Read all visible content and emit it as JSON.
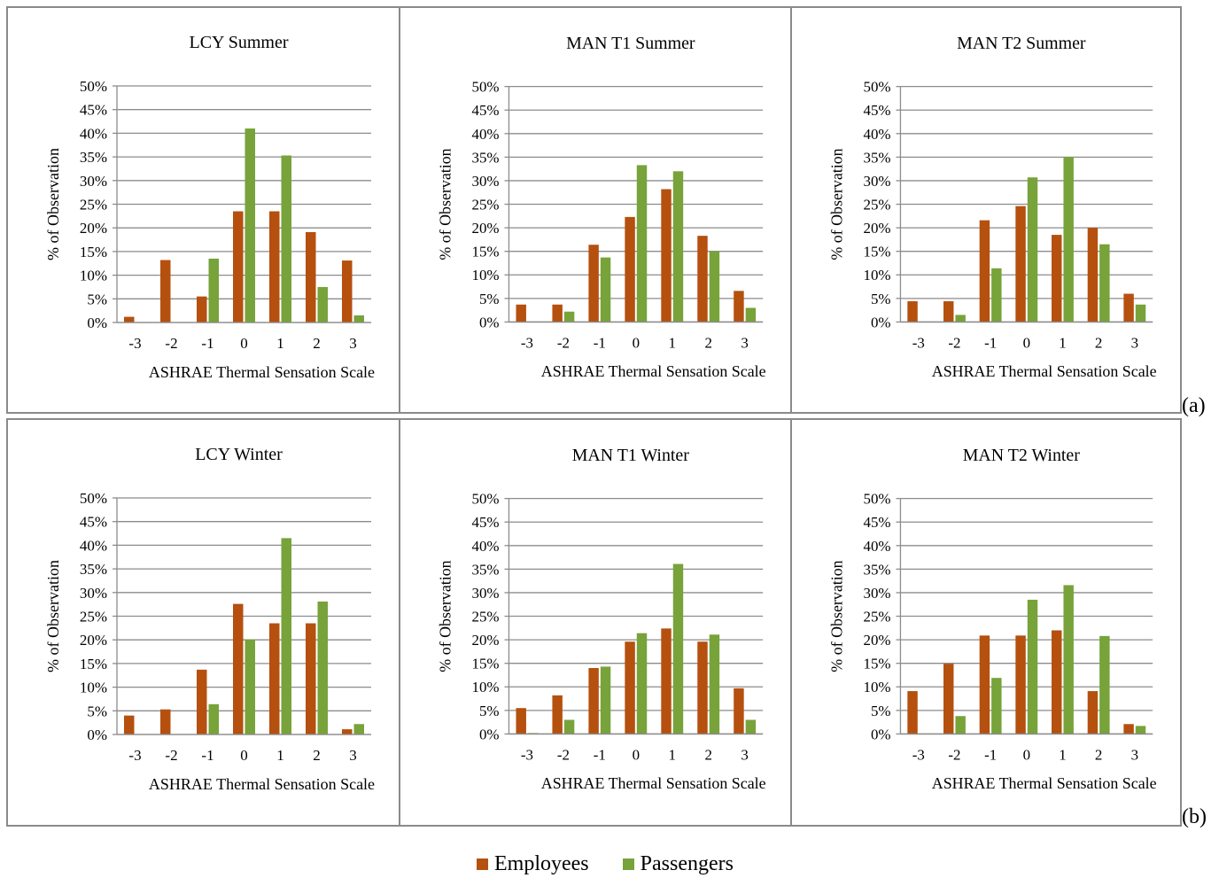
{
  "panels": [
    {
      "label": "(a)"
    },
    {
      "label": "(b)"
    }
  ],
  "legend": [
    {
      "name": "Employees",
      "color": "#b5500f"
    },
    {
      "name": "Passengers",
      "color": "#77a33a"
    }
  ],
  "chart_data": [
    {
      "type": "bar",
      "title": "LCY Summer",
      "xlabel": "ASHRAE Thermal Sensation Scale",
      "ylabel": "% of Observation",
      "categories": [
        "-3",
        "-2",
        "-1",
        "0",
        "1",
        "2",
        "3"
      ],
      "ylim": [
        0,
        50
      ],
      "yticks": [
        "0%",
        "5%",
        "10%",
        "15%",
        "20%",
        "25%",
        "30%",
        "35%",
        "40%",
        "45%",
        "50%"
      ],
      "grid": true,
      "series": [
        {
          "name": "Employees",
          "values": [
            1.2,
            13.2,
            5.5,
            23.5,
            23.5,
            19.1,
            13.1
          ]
        },
        {
          "name": "Passengers",
          "values": [
            0,
            0,
            13.5,
            41.0,
            35.3,
            7.5,
            1.5
          ]
        }
      ]
    },
    {
      "type": "bar",
      "title": "MAN T1 Summer",
      "xlabel": "ASHRAE Thermal Sensation Scale",
      "ylabel": "% of Observation",
      "categories": [
        "-3",
        "-2",
        "-1",
        "0",
        "1",
        "2",
        "3"
      ],
      "ylim": [
        0,
        50
      ],
      "yticks": [
        "0%",
        "5%",
        "10%",
        "15%",
        "20%",
        "25%",
        "30%",
        "35%",
        "40%",
        "45%",
        "50%"
      ],
      "grid": true,
      "series": [
        {
          "name": "Employees",
          "values": [
            3.7,
            3.7,
            16.4,
            22.3,
            28.2,
            18.3,
            6.6
          ]
        },
        {
          "name": "Passengers",
          "values": [
            0,
            2.2,
            13.7,
            33.3,
            32.0,
            15.0,
            3.0
          ]
        }
      ]
    },
    {
      "type": "bar",
      "title": "MAN T2 Summer",
      "xlabel": "ASHRAE Thermal Sensation Scale",
      "ylabel": "% of Observation",
      "categories": [
        "-3",
        "-2",
        "-1",
        "0",
        "1",
        "2",
        "3"
      ],
      "ylim": [
        0,
        50
      ],
      "yticks": [
        "0%",
        "5%",
        "10%",
        "15%",
        "20%",
        "25%",
        "30%",
        "35%",
        "40%",
        "45%",
        "50%"
      ],
      "grid": true,
      "series": [
        {
          "name": "Employees",
          "values": [
            4.4,
            4.4,
            21.6,
            24.6,
            18.5,
            20.0,
            6.0
          ]
        },
        {
          "name": "Passengers",
          "values": [
            0,
            1.5,
            11.4,
            30.7,
            35.0,
            16.5,
            3.7
          ]
        }
      ]
    },
    {
      "type": "bar",
      "title": "LCY Winter",
      "xlabel": "ASHRAE Thermal Sensation Scale",
      "ylabel": "% of Observation",
      "categories": [
        "-3",
        "-2",
        "-1",
        "0",
        "1",
        "2",
        "3"
      ],
      "ylim": [
        0,
        50
      ],
      "yticks": [
        "0%",
        "5%",
        "10%",
        "15%",
        "20%",
        "25%",
        "30%",
        "35%",
        "40%",
        "45%",
        "50%"
      ],
      "grid": true,
      "series": [
        {
          "name": "Employees",
          "values": [
            4.0,
            5.3,
            13.7,
            27.6,
            23.5,
            23.5,
            1.1
          ]
        },
        {
          "name": "Passengers",
          "values": [
            0,
            0,
            6.4,
            20.1,
            41.5,
            28.1,
            2.2
          ]
        }
      ]
    },
    {
      "type": "bar",
      "title": "MAN T1 Winter",
      "xlabel": "ASHRAE Thermal Sensation Scale",
      "ylabel": "% of Observation",
      "categories": [
        "-3",
        "-2",
        "-1",
        "0",
        "1",
        "2",
        "3"
      ],
      "ylim": [
        0,
        50
      ],
      "yticks": [
        "0%",
        "5%",
        "10%",
        "15%",
        "20%",
        "25%",
        "30%",
        "35%",
        "40%",
        "45%",
        "50%"
      ],
      "grid": true,
      "series": [
        {
          "name": "Employees",
          "values": [
            5.5,
            8.2,
            14.0,
            19.6,
            22.4,
            19.6,
            9.7
          ]
        },
        {
          "name": "Passengers",
          "values": [
            0.2,
            3.0,
            14.3,
            21.4,
            36.1,
            21.1,
            3.0
          ]
        }
      ]
    },
    {
      "type": "bar",
      "title": "MAN T2 Winter",
      "xlabel": "ASHRAE Thermal Sensation Scale",
      "ylabel": "% of Observation",
      "categories": [
        "-3",
        "-2",
        "-1",
        "0",
        "1",
        "2",
        "3"
      ],
      "ylim": [
        0,
        50
      ],
      "yticks": [
        "0%",
        "5%",
        "10%",
        "15%",
        "20%",
        "25%",
        "30%",
        "35%",
        "40%",
        "45%",
        "50%"
      ],
      "grid": true,
      "series": [
        {
          "name": "Employees",
          "values": [
            9.1,
            14.9,
            20.9,
            20.9,
            22.0,
            9.1,
            2.1
          ]
        },
        {
          "name": "Passengers",
          "values": [
            0,
            3.8,
            11.9,
            28.5,
            31.6,
            20.8,
            1.7
          ]
        }
      ]
    }
  ]
}
